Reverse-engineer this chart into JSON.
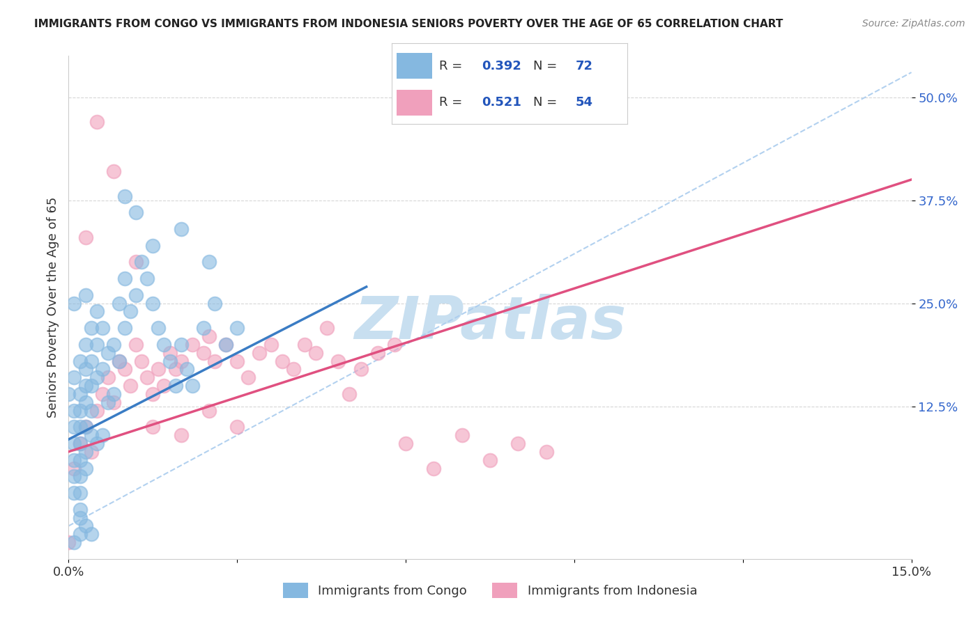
{
  "title": "IMMIGRANTS FROM CONGO VS IMMIGRANTS FROM INDONESIA SENIORS POVERTY OVER THE AGE OF 65 CORRELATION CHART",
  "source": "Source: ZipAtlas.com",
  "ylabel": "Seniors Poverty Over the Age of 65",
  "xlim": [
    0.0,
    0.15
  ],
  "ylim": [
    -0.06,
    0.55
  ],
  "xticks": [
    0.0,
    0.03,
    0.06,
    0.09,
    0.12,
    0.15
  ],
  "xticklabels": [
    "0.0%",
    "",
    "",
    "",
    "",
    "15.0%"
  ],
  "ytick_positions": [
    0.125,
    0.25,
    0.375,
    0.5
  ],
  "yticklabels": [
    "12.5%",
    "25.0%",
    "37.5%",
    "50.0%"
  ],
  "congo_R": 0.392,
  "congo_N": 72,
  "indonesia_R": 0.521,
  "indonesia_N": 54,
  "congo_color": "#85b8e0",
  "indonesia_color": "#f0a0bc",
  "congo_line_color": "#3a7cc4",
  "indonesia_line_color": "#e05080",
  "trendline_dashed_color": "#aaccee",
  "background_color": "#ffffff",
  "watermark": "ZIPatlas",
  "watermark_color": "#c8dff0",
  "legend_color": "#2255bb",
  "congo_scatter_x": [
    0.0,
    0.001,
    0.001,
    0.001,
    0.001,
    0.001,
    0.001,
    0.001,
    0.002,
    0.002,
    0.002,
    0.002,
    0.002,
    0.002,
    0.002,
    0.002,
    0.002,
    0.003,
    0.003,
    0.003,
    0.003,
    0.003,
    0.003,
    0.003,
    0.004,
    0.004,
    0.004,
    0.004,
    0.004,
    0.005,
    0.005,
    0.005,
    0.005,
    0.006,
    0.006,
    0.006,
    0.007,
    0.007,
    0.008,
    0.008,
    0.009,
    0.009,
    0.01,
    0.01,
    0.011,
    0.012,
    0.013,
    0.014,
    0.015,
    0.016,
    0.017,
    0.018,
    0.019,
    0.02,
    0.021,
    0.022,
    0.024,
    0.026,
    0.028,
    0.03,
    0.01,
    0.012,
    0.015,
    0.02,
    0.025,
    0.002,
    0.003,
    0.004,
    0.001,
    0.002,
    0.001,
    0.003
  ],
  "congo_scatter_y": [
    0.14,
    0.12,
    0.1,
    0.08,
    0.06,
    0.04,
    0.02,
    0.16,
    0.18,
    0.14,
    0.12,
    0.1,
    0.08,
    0.06,
    0.04,
    0.02,
    0.0,
    0.2,
    0.17,
    0.15,
    0.13,
    0.1,
    0.07,
    0.05,
    0.22,
    0.18,
    0.15,
    0.12,
    0.09,
    0.24,
    0.2,
    0.16,
    0.08,
    0.22,
    0.17,
    0.09,
    0.19,
    0.13,
    0.2,
    0.14,
    0.25,
    0.18,
    0.28,
    0.22,
    0.24,
    0.26,
    0.3,
    0.28,
    0.25,
    0.22,
    0.2,
    0.18,
    0.15,
    0.2,
    0.17,
    0.15,
    0.22,
    0.25,
    0.2,
    0.22,
    0.38,
    0.36,
    0.32,
    0.34,
    0.3,
    -0.01,
    -0.02,
    -0.03,
    -0.04,
    -0.03,
    0.25,
    0.26
  ],
  "indonesia_scatter_x": [
    0.0,
    0.001,
    0.002,
    0.003,
    0.004,
    0.005,
    0.006,
    0.007,
    0.008,
    0.009,
    0.01,
    0.011,
    0.012,
    0.013,
    0.014,
    0.015,
    0.016,
    0.017,
    0.018,
    0.019,
    0.02,
    0.022,
    0.024,
    0.025,
    0.026,
    0.028,
    0.03,
    0.032,
    0.034,
    0.036,
    0.038,
    0.04,
    0.042,
    0.044,
    0.046,
    0.048,
    0.05,
    0.052,
    0.055,
    0.058,
    0.06,
    0.065,
    0.07,
    0.075,
    0.08,
    0.085,
    0.003,
    0.005,
    0.008,
    0.012,
    0.015,
    0.02,
    0.025,
    0.03
  ],
  "indonesia_scatter_y": [
    -0.04,
    0.05,
    0.08,
    0.1,
    0.07,
    0.12,
    0.14,
    0.16,
    0.13,
    0.18,
    0.17,
    0.15,
    0.2,
    0.18,
    0.16,
    0.14,
    0.17,
    0.15,
    0.19,
    0.17,
    0.18,
    0.2,
    0.19,
    0.21,
    0.18,
    0.2,
    0.18,
    0.16,
    0.19,
    0.2,
    0.18,
    0.17,
    0.2,
    0.19,
    0.22,
    0.18,
    0.14,
    0.17,
    0.19,
    0.2,
    0.08,
    0.05,
    0.09,
    0.06,
    0.08,
    0.07,
    0.33,
    0.47,
    0.41,
    0.3,
    0.1,
    0.09,
    0.12,
    0.1
  ],
  "congo_line_x1": 0.0,
  "congo_line_y1": 0.085,
  "congo_line_x2": 0.053,
  "congo_line_y2": 0.27,
  "indonesia_line_x1": 0.0,
  "indonesia_line_y1": 0.07,
  "indonesia_line_x2": 0.15,
  "indonesia_line_y2": 0.4,
  "dash_line_x1": 0.0,
  "dash_line_y1": -0.02,
  "dash_line_x2": 0.15,
  "dash_line_y2": 0.53
}
